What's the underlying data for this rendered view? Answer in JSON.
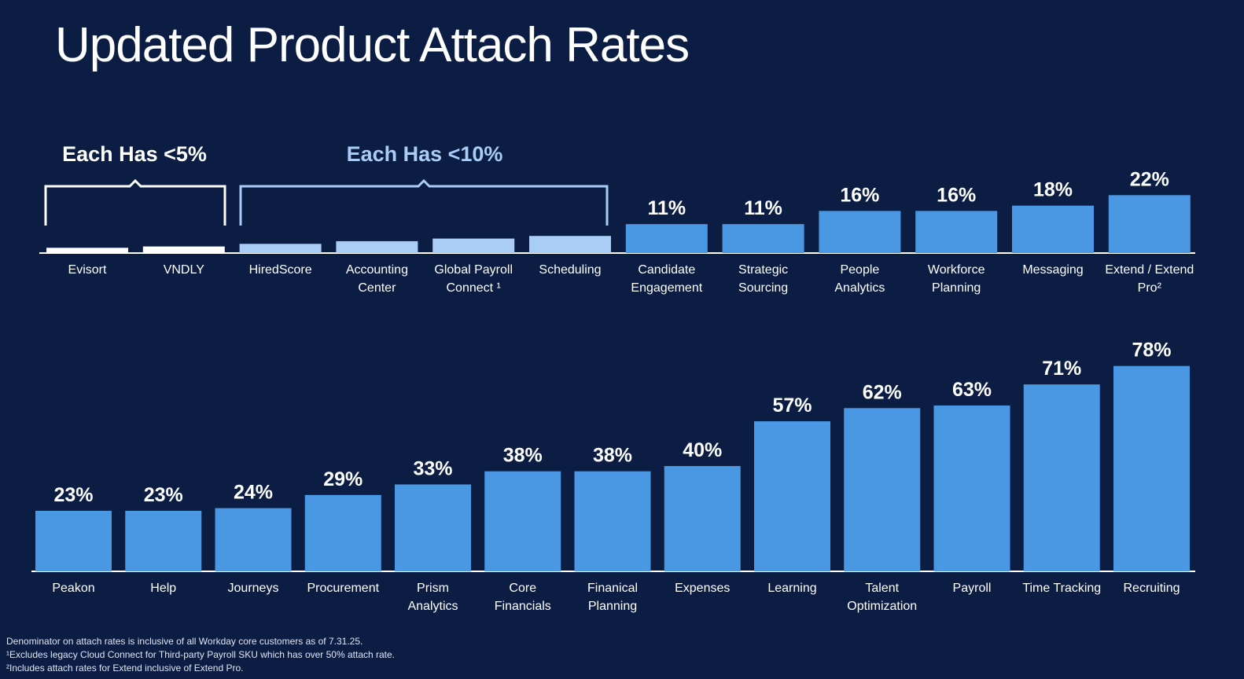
{
  "title": "Updated Product Attach Rates",
  "colors": {
    "background": "#0c1d44",
    "bar_main": "#4a98e3",
    "bar_light": "#a9cdf6",
    "bar_white": "#ffffff",
    "text": "#ffffff",
    "bracket_light": "#a9cdf6"
  },
  "groups": {
    "under5": "Each Has <5%",
    "under10": "Each Has <10%"
  },
  "chart_data": [
    {
      "type": "bar",
      "title": "",
      "ylim": [
        0,
        78
      ],
      "categories": [
        "Evisort",
        "VNDLY",
        "HiredScore",
        "Accounting Center",
        "Global Payroll Connect ¹",
        "Scheduling",
        "Candidate Engagement",
        "Strategic Sourcing",
        "People Analytics",
        "Workforce Planning",
        "Messaging",
        "Extend / Extend Pro²"
      ],
      "label_lines": [
        [
          "Evisort"
        ],
        [
          "VNDLY"
        ],
        [
          "HiredScore"
        ],
        [
          "Accounting",
          "Center"
        ],
        [
          "Global Payroll",
          "Connect ¹"
        ],
        [
          "Scheduling"
        ],
        [
          "Candidate",
          "Engagement"
        ],
        [
          "Strategic",
          "Sourcing"
        ],
        [
          "People",
          "Analytics"
        ],
        [
          "Workforce",
          "Planning"
        ],
        [
          "Messaging"
        ],
        [
          "Extend / Extend",
          "Pro²"
        ]
      ],
      "values": [
        2,
        2.5,
        3.5,
        4.5,
        5.5,
        6.5,
        11,
        11,
        16,
        16,
        18,
        22
      ],
      "data_labels": [
        "",
        "",
        "",
        "",
        "",
        "",
        "11%",
        "11%",
        "16%",
        "16%",
        "18%",
        "22%"
      ],
      "bar_tone": [
        "white",
        "white",
        "light",
        "light",
        "light",
        "light",
        "main",
        "main",
        "main",
        "main",
        "main",
        "main"
      ]
    },
    {
      "type": "bar",
      "title": "",
      "ylim": [
        0,
        78
      ],
      "categories": [
        "Peakon",
        "Help",
        "Journeys",
        "Procurement",
        "Prism Analytics",
        "Core Financials",
        "Finanical Planning",
        "Expenses",
        "Learning",
        "Talent Optimization",
        "Payroll",
        "Time Tracking",
        "Recruiting"
      ],
      "label_lines": [
        [
          "Peakon"
        ],
        [
          "Help"
        ],
        [
          "Journeys"
        ],
        [
          "Procurement"
        ],
        [
          "Prism",
          "Analytics"
        ],
        [
          "Core",
          "Financials"
        ],
        [
          "Finanical",
          "Planning"
        ],
        [
          "Expenses"
        ],
        [
          "Learning"
        ],
        [
          "Talent",
          "Optimization"
        ],
        [
          "Payroll"
        ],
        [
          "Time Tracking"
        ],
        [
          "Recruiting"
        ]
      ],
      "values": [
        23,
        23,
        24,
        29,
        33,
        38,
        38,
        40,
        57,
        62,
        63,
        71,
        78
      ],
      "data_labels": [
        "23%",
        "23%",
        "24%",
        "29%",
        "33%",
        "38%",
        "38%",
        "40%",
        "57%",
        "62%",
        "63%",
        "71%",
        "78%"
      ]
    }
  ],
  "footnotes": [
    "Denominator on attach rates is inclusive of all Workday core customers as of 7.31.25.",
    "¹Excludes legacy Cloud Connect for Third-party Payroll SKU which has over 50% attach rate.",
    "²Includes attach rates for Extend inclusive of Extend Pro."
  ]
}
